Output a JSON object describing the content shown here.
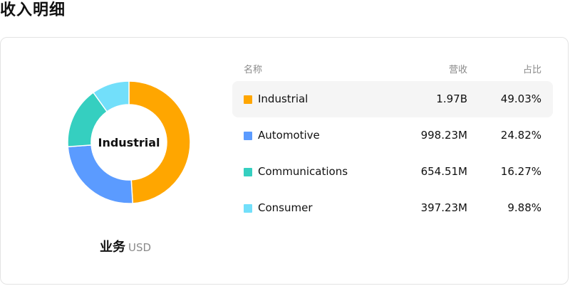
{
  "page": {
    "title": "收入明细"
  },
  "donut": {
    "center_label": "Industrial",
    "caption_title": "业务",
    "caption_unit": "USD"
  },
  "table": {
    "headers": {
      "name": "名称",
      "revenue": "营收",
      "share": "占比"
    },
    "rows": [
      {
        "name": "Industrial",
        "revenue": "1.97B",
        "share": "49.03%",
        "color": "#FFA600",
        "active": true
      },
      {
        "name": "Automotive",
        "revenue": "998.23M",
        "share": "24.82%",
        "color": "#5B9BFF",
        "active": false
      },
      {
        "name": "Communications",
        "revenue": "654.51M",
        "share": "16.27%",
        "color": "#35CFC0",
        "active": false
      },
      {
        "name": "Consumer",
        "revenue": "397.23M",
        "share": "9.88%",
        "color": "#72DFFA",
        "active": false
      }
    ]
  },
  "chart_data": {
    "type": "pie",
    "categories": [
      "Industrial",
      "Automotive",
      "Communications",
      "Consumer"
    ],
    "values": [
      49.03,
      24.82,
      16.27,
      9.88
    ],
    "colors": [
      "#FFA600",
      "#5B9BFF",
      "#35CFC0",
      "#72DFFA"
    ],
    "title": "",
    "legend": "table-right"
  }
}
